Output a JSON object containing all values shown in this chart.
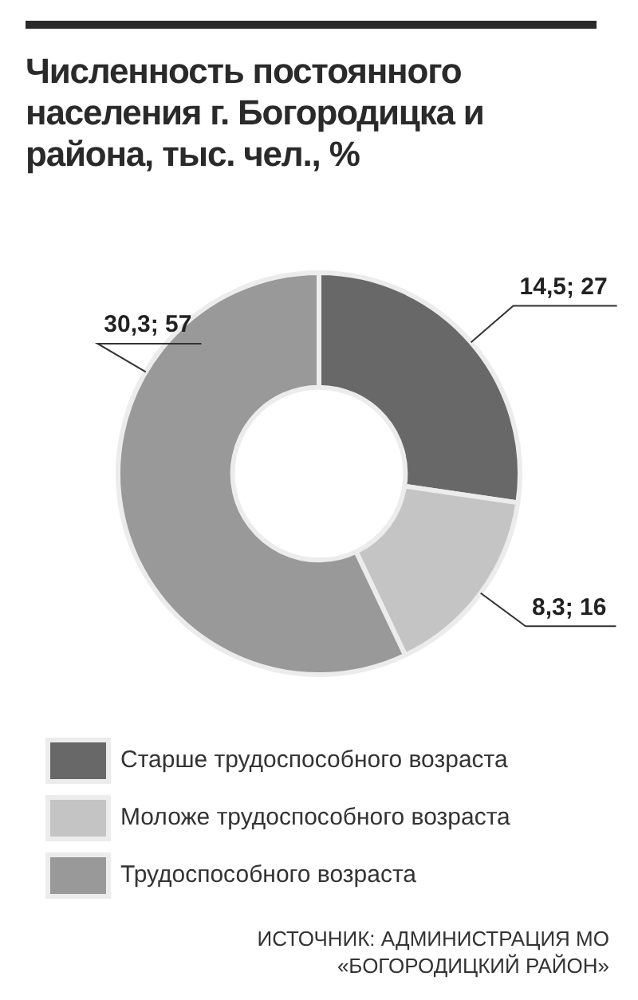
{
  "chart_data": {
    "type": "donut",
    "title": "Численность постоянного населения г. Богородицка и района, тыс. чел.,  %",
    "categories": [
      "Старше трудоспособного возраста",
      "Моложе трудоспособного возраста",
      "Трудоспособного возраста"
    ],
    "values": [
      14.5,
      8.3,
      30.3
    ],
    "value_labels": [
      "14,5; 27",
      "8,3; 16",
      "30,3; 57"
    ],
    "colors": [
      "#686868",
      "#c4c4c4",
      "#999999"
    ],
    "legend": "bottom",
    "annotations": [
      "ИСТОЧНИК: АДМИНИСТРАЦИЯ МО «БОГОРОДИЦКИЙ РАЙОН»"
    ]
  }
}
